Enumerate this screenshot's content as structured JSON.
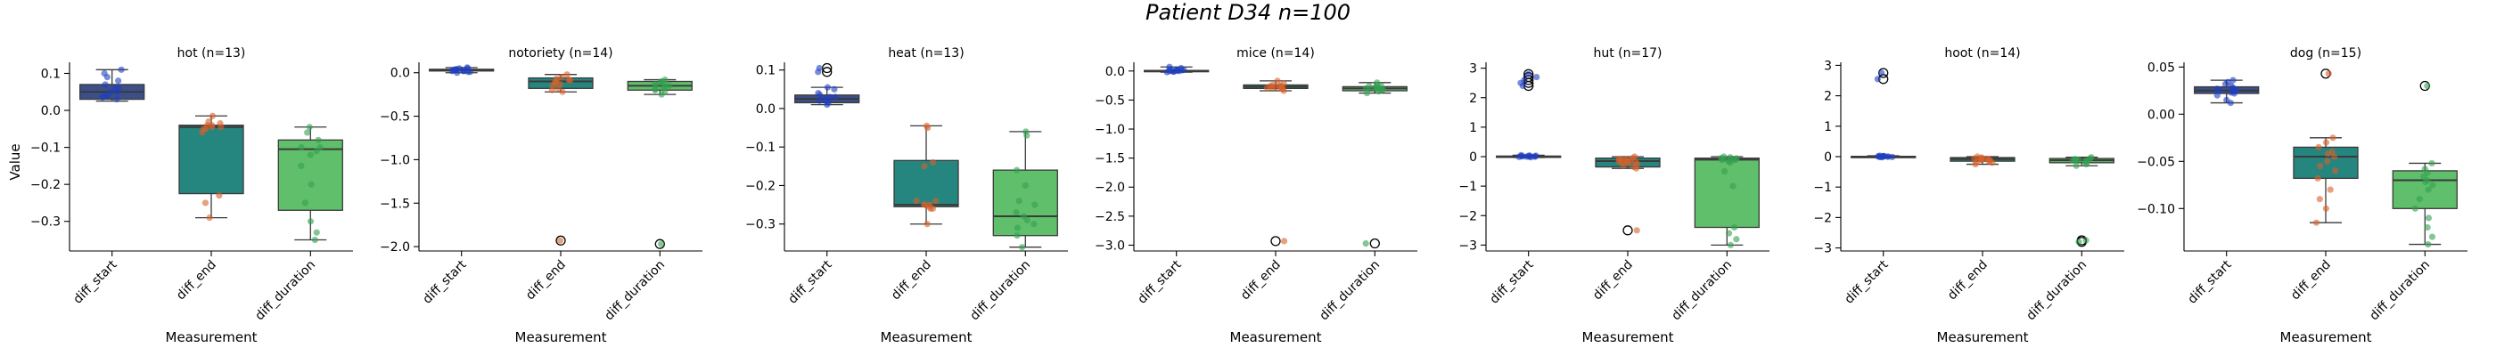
{
  "figure_title": "Patient D34 n=100",
  "chart_data": {
    "type": "box",
    "ylabel": "Value",
    "xlabel": "Measurement",
    "categories": [
      "diff_start",
      "diff_end",
      "diff_duration"
    ],
    "colors": {
      "box": [
        "#3b4f8a",
        "#25857f",
        "#5fbf6a"
      ],
      "points": [
        "#2040c0",
        "#d8602a",
        "#33a050"
      ]
    },
    "panels": [
      {
        "title": "hot (n=13)",
        "ylim": [
          -0.38,
          0.13
        ],
        "yticks": [
          0.1,
          0.0,
          -0.1,
          -0.2,
          -0.3
        ],
        "yticklabels": [
          "0.1",
          "0.0",
          "−0.1",
          "−0.2",
          "−0.3"
        ],
        "boxes": [
          {
            "q1": 0.03,
            "median": 0.05,
            "q3": 0.07,
            "wlo": 0.025,
            "whi": 0.11,
            "fliers": []
          },
          {
            "q1": -0.225,
            "median": -0.045,
            "q3": -0.04,
            "wlo": -0.29,
            "whi": -0.015,
            "fliers": []
          },
          {
            "q1": -0.27,
            "median": -0.105,
            "q3": -0.08,
            "wlo": -0.35,
            "whi": -0.045,
            "fliers": []
          }
        ],
        "points": [
          [
            0.03,
            0.04,
            0.05,
            0.06,
            0.07,
            0.08,
            0.1,
            0.11,
            0.04,
            0.05,
            0.035,
            0.09,
            0.06
          ],
          [
            -0.015,
            -0.03,
            -0.04,
            -0.045,
            -0.05,
            -0.06,
            -0.23,
            -0.25,
            -0.29,
            -0.045,
            -0.05,
            -0.04,
            -0.035
          ],
          [
            -0.045,
            -0.06,
            -0.08,
            -0.1,
            -0.11,
            -0.15,
            -0.2,
            -0.25,
            -0.3,
            -0.33,
            -0.35,
            -0.1,
            -0.12
          ]
        ]
      },
      {
        "title": "notoriety (n=14)",
        "ylim": [
          -2.05,
          0.12
        ],
        "yticks": [
          0.0,
          -0.5,
          -1.0,
          -1.5,
          -2.0
        ],
        "yticklabels": [
          "0.0",
          "−0.5",
          "−1.0",
          "−1.5",
          "−2.0"
        ],
        "boxes": [
          {
            "q1": 0.02,
            "median": 0.03,
            "q3": 0.04,
            "wlo": 0.0,
            "whi": 0.06,
            "fliers": []
          },
          {
            "q1": -0.18,
            "median": -0.1,
            "q3": -0.06,
            "wlo": -0.22,
            "whi": -0.02,
            "fliers": [
              -1.93
            ]
          },
          {
            "q1": -0.2,
            "median": -0.15,
            "q3": -0.1,
            "wlo": -0.25,
            "whi": -0.08,
            "fliers": [
              -1.97
            ]
          }
        ],
        "points": [
          [
            0.0,
            0.01,
            0.02,
            0.03,
            0.04,
            0.05,
            0.06,
            0.02,
            0.03,
            0.04,
            0.01,
            0.03,
            0.05,
            0.02
          ],
          [
            -0.02,
            -0.05,
            -0.08,
            -0.1,
            -0.12,
            -0.15,
            -0.18,
            -0.2,
            -0.22,
            -0.1,
            -0.09,
            -0.07,
            -0.13,
            -1.93
          ],
          [
            -0.08,
            -0.1,
            -0.12,
            -0.15,
            -0.18,
            -0.2,
            -0.22,
            -0.25,
            -0.14,
            -0.16,
            -0.11,
            -0.19,
            -0.13,
            -1.97
          ]
        ]
      },
      {
        "title": "heat (n=13)",
        "ylim": [
          -0.37,
          0.12
        ],
        "yticks": [
          0.1,
          0.0,
          -0.1,
          -0.2,
          -0.3
        ],
        "yticklabels": [
          "0.1",
          "0.0",
          "−0.1",
          "−0.2",
          "−0.3"
        ],
        "boxes": [
          {
            "q1": 0.015,
            "median": 0.025,
            "q3": 0.035,
            "wlo": 0.01,
            "whi": 0.055,
            "fliers": [
              0.095,
              0.105
            ]
          },
          {
            "q1": -0.255,
            "median": -0.25,
            "q3": -0.135,
            "wlo": -0.3,
            "whi": -0.045,
            "fliers": []
          },
          {
            "q1": -0.33,
            "median": -0.28,
            "q3": -0.16,
            "wlo": -0.36,
            "whi": -0.06,
            "fliers": []
          }
        ],
        "points": [
          [
            0.01,
            0.015,
            0.02,
            0.025,
            0.03,
            0.035,
            0.04,
            0.05,
            0.055,
            0.02,
            0.03,
            0.095,
            0.105
          ],
          [
            -0.045,
            -0.05,
            -0.14,
            -0.24,
            -0.25,
            -0.255,
            -0.26,
            -0.3,
            -0.25,
            -0.26,
            -0.24,
            -0.15,
            -0.25
          ],
          [
            -0.06,
            -0.07,
            -0.16,
            -0.2,
            -0.25,
            -0.28,
            -0.3,
            -0.33,
            -0.36,
            -0.27,
            -0.29,
            -0.24,
            -0.31
          ]
        ]
      },
      {
        "title": "mice (n=14)",
        "ylim": [
          -3.1,
          0.15
        ],
        "yticks": [
          0.0,
          -0.5,
          -1.0,
          -1.5,
          -2.0,
          -2.5,
          -3.0
        ],
        "yticklabels": [
          "0.0",
          "−0.5",
          "−1.0",
          "−1.5",
          "−2.0",
          "−2.5",
          "−3.0"
        ],
        "boxes": [
          {
            "q1": -0.01,
            "median": 0.0,
            "q3": 0.01,
            "wlo": -0.02,
            "whi": 0.07,
            "fliers": []
          },
          {
            "q1": -0.3,
            "median": -0.27,
            "q3": -0.24,
            "wlo": -0.34,
            "whi": -0.17,
            "fliers": [
              -2.93
            ]
          },
          {
            "q1": -0.34,
            "median": -0.3,
            "q3": -0.27,
            "wlo": -0.38,
            "whi": -0.2,
            "fliers": [
              -2.97
            ]
          }
        ],
        "points": [
          [
            -0.02,
            -0.01,
            0.0,
            0.01,
            0.02,
            0.05,
            0.07,
            0.0,
            0.01,
            -0.01,
            0.02,
            0.0,
            0.03,
            0.01
          ],
          [
            -0.17,
            -0.22,
            -0.25,
            -0.27,
            -0.29,
            -0.31,
            -0.34,
            -0.26,
            -0.28,
            -0.3,
            -0.24,
            -0.27,
            -0.29,
            -2.93
          ],
          [
            -0.2,
            -0.25,
            -0.28,
            -0.3,
            -0.32,
            -0.35,
            -0.38,
            -0.29,
            -0.31,
            -0.27,
            -0.33,
            -0.3,
            -0.26,
            -2.97
          ]
        ]
      },
      {
        "title": "hut (n=17)",
        "ylim": [
          -3.2,
          3.2
        ],
        "yticks": [
          3,
          2,
          1,
          0,
          -1,
          -2,
          -3
        ],
        "yticklabels": [
          "3",
          "2",
          "1",
          "0",
          "−1",
          "−2",
          "−3"
        ],
        "boxes": [
          {
            "q1": -0.01,
            "median": 0.0,
            "q3": 0.02,
            "wlo": -0.03,
            "whi": 0.05,
            "fliers": [
              2.4,
              2.5,
              2.6,
              2.7,
              2.8
            ]
          },
          {
            "q1": -0.35,
            "median": -0.15,
            "q3": -0.05,
            "wlo": -0.4,
            "whi": 0.0,
            "fliers": [
              -2.5
            ]
          },
          {
            "q1": -2.4,
            "median": -0.1,
            "q3": -0.05,
            "wlo": -3.0,
            "whi": 0.0,
            "fliers": []
          }
        ],
        "points": [
          [
            0.0,
            0.01,
            0.02,
            -0.01,
            0.0,
            0.03,
            0.04,
            0.05,
            0.0,
            0.01,
            -0.02,
            0.02,
            2.4,
            2.5,
            2.6,
            2.7,
            2.8
          ],
          [
            0.0,
            -0.05,
            -0.08,
            -0.1,
            -0.12,
            -0.15,
            -0.18,
            -0.2,
            -0.25,
            -0.3,
            -0.35,
            -0.1,
            -0.14,
            -0.16,
            -0.22,
            -0.4,
            -2.5
          ],
          [
            0.0,
            -0.02,
            -0.05,
            -0.08,
            -0.1,
            -0.12,
            -0.15,
            -0.2,
            -0.5,
            -1.0,
            -2.4,
            -2.6,
            -2.8,
            -3.0,
            -0.1,
            -0.11,
            -0.06
          ]
        ]
      },
      {
        "title": "hoot (n=14)",
        "ylim": [
          -3.1,
          3.1
        ],
        "yticks": [
          3,
          2,
          1,
          0,
          -1,
          -2,
          -3
        ],
        "yticklabels": [
          "3",
          "2",
          "1",
          "0",
          "−1",
          "−2",
          "−3"
        ],
        "boxes": [
          {
            "q1": -0.01,
            "median": 0.0,
            "q3": 0.01,
            "wlo": -0.02,
            "whi": 0.03,
            "fliers": [
              2.55,
              2.75
            ]
          },
          {
            "q1": -0.15,
            "median": -0.08,
            "q3": -0.03,
            "wlo": -0.25,
            "whi": 0.0,
            "fliers": []
          },
          {
            "q1": -0.2,
            "median": -0.12,
            "q3": -0.06,
            "wlo": -0.3,
            "whi": -0.02,
            "fliers": [
              -2.75,
              -2.8
            ]
          }
        ],
        "points": [
          [
            -0.02,
            -0.01,
            0.0,
            0.01,
            0.02,
            0.03,
            0.0,
            0.01,
            -0.01,
            0.0,
            0.02,
            0.0,
            2.55,
            2.75
          ],
          [
            0.0,
            -0.03,
            -0.05,
            -0.08,
            -0.1,
            -0.12,
            -0.15,
            -0.2,
            -0.25,
            -0.07,
            -0.09,
            -0.06,
            -0.11,
            -0.18
          ],
          [
            -0.02,
            -0.06,
            -0.08,
            -0.1,
            -0.12,
            -0.15,
            -0.2,
            -0.25,
            -0.3,
            -0.11,
            -0.13,
            -0.09,
            -2.75,
            -2.8
          ]
        ]
      },
      {
        "title": "dog (n=15)",
        "ylim": [
          -0.145,
          0.055
        ],
        "yticks": [
          0.05,
          0.0,
          -0.05,
          -0.1
        ],
        "yticklabels": [
          "0.05",
          "0.00",
          "−0.05",
          "−0.10"
        ],
        "boxes": [
          {
            "q1": 0.022,
            "median": 0.025,
            "q3": 0.029,
            "wlo": 0.012,
            "whi": 0.036,
            "fliers": []
          },
          {
            "q1": -0.068,
            "median": -0.045,
            "q3": -0.035,
            "wlo": -0.115,
            "whi": -0.025,
            "fliers": [
              0.043
            ]
          },
          {
            "q1": -0.1,
            "median": -0.07,
            "q3": -0.06,
            "wlo": -0.138,
            "whi": -0.052,
            "fliers": [
              0.03
            ]
          }
        ],
        "points": [
          [
            0.012,
            0.015,
            0.02,
            0.022,
            0.024,
            0.025,
            0.026,
            0.028,
            0.03,
            0.032,
            0.034,
            0.036,
            0.025,
            0.027,
            0.023
          ],
          [
            -0.025,
            -0.03,
            -0.035,
            -0.04,
            -0.045,
            -0.05,
            -0.055,
            -0.06,
            -0.068,
            -0.08,
            -0.09,
            -0.1,
            -0.115,
            -0.042,
            0.043
          ],
          [
            -0.052,
            -0.058,
            -0.062,
            -0.066,
            -0.07,
            -0.075,
            -0.08,
            -0.09,
            -0.1,
            -0.11,
            -0.12,
            -0.13,
            -0.138,
            -0.072,
            0.03
          ]
        ]
      }
    ]
  }
}
